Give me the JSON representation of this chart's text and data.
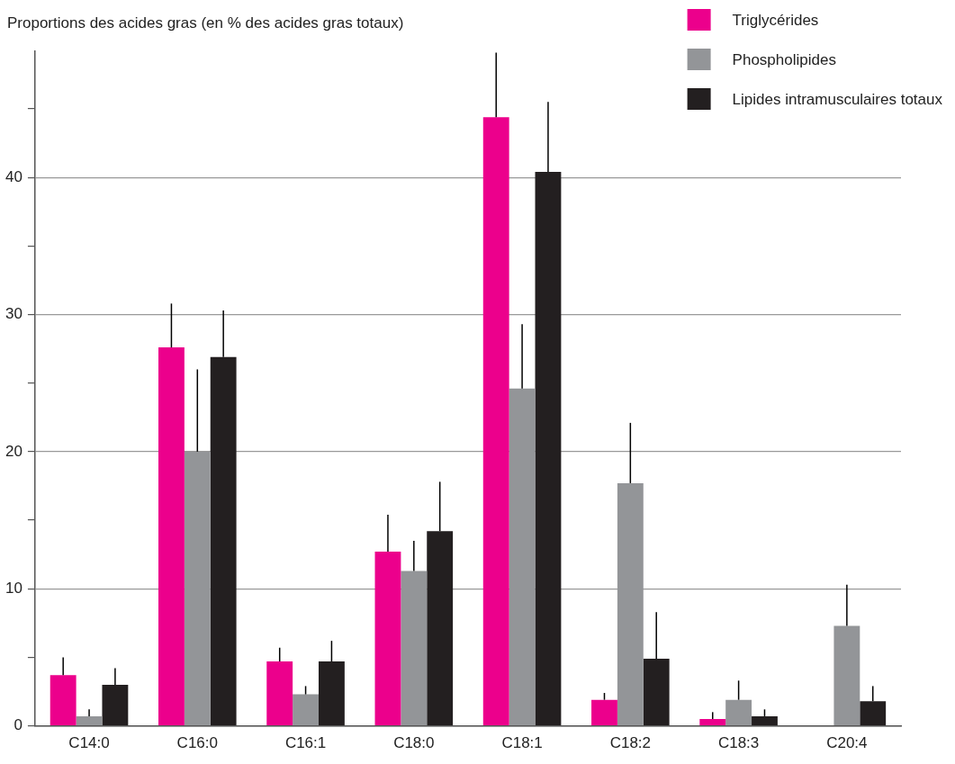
{
  "chart_data": {
    "type": "bar",
    "ylabel": "Proportions des acides gras (en % des acides gras totaux)",
    "categories": [
      "C14:0",
      "C16:0",
      "C16:1",
      "C18:0",
      "C18:1",
      "C18:2",
      "C18:3",
      "C20:4"
    ],
    "series": [
      {
        "name": "Triglycérides",
        "color": "#ec008c",
        "values": [
          3.7,
          27.6,
          4.7,
          12.7,
          44.4,
          1.9,
          0.5,
          null
        ],
        "errors": [
          [
            3.7,
            5.0
          ],
          [
            27.6,
            30.8
          ],
          [
            4.7,
            5.7
          ],
          [
            12.7,
            15.4
          ],
          [
            44.4,
            49.1
          ],
          [
            1.9,
            2.4
          ],
          [
            0.5,
            1.0
          ],
          null
        ]
      },
      {
        "name": "Phospholipides",
        "color": "#939598",
        "values": [
          0.7,
          20.0,
          2.3,
          11.3,
          24.6,
          17.7,
          1.9,
          7.3
        ],
        "errors": [
          [
            0.7,
            1.2
          ],
          [
            20.0,
            26.0
          ],
          [
            2.3,
            2.9
          ],
          [
            11.3,
            13.5
          ],
          [
            24.6,
            29.3
          ],
          [
            17.7,
            22.1
          ],
          [
            1.9,
            3.3
          ],
          [
            7.3,
            10.3
          ]
        ]
      },
      {
        "name": "Lipides intramusculaires totaux",
        "color": "#231f20",
        "values": [
          3.0,
          26.9,
          4.7,
          14.2,
          40.4,
          4.9,
          0.7,
          1.8
        ],
        "errors": [
          [
            3.0,
            4.2
          ],
          [
            26.9,
            30.3
          ],
          [
            4.7,
            6.2
          ],
          [
            14.2,
            17.8
          ],
          [
            40.4,
            45.5
          ],
          [
            4.9,
            8.3
          ],
          [
            0.7,
            1.2
          ],
          [
            1.8,
            2.9
          ]
        ]
      }
    ],
    "ylim": [
      0,
      49.2
    ],
    "yticks": [
      0,
      {
        "value": 5,
        "label": null
      },
      10,
      {
        "value": 15,
        "label": null
      },
      20,
      {
        "value": 25,
        "label": null
      },
      30,
      {
        "value": 35,
        "label": null
      },
      40,
      {
        "value": 45,
        "label": null
      }
    ],
    "grid": "y",
    "legend": "top right"
  }
}
